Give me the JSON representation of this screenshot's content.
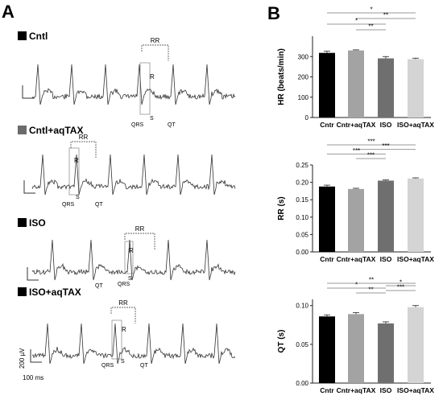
{
  "panels": {
    "A": {
      "label": "A"
    },
    "B": {
      "label": "B"
    }
  },
  "ecg": {
    "traces": [
      {
        "name": "Cntl",
        "swatch": "#000000",
        "annotations": {
          "rr": "RR",
          "r": "R",
          "qrs": "QRS",
          "s": "S",
          "qt": "QT"
        }
      },
      {
        "name": "Cntl+aqTAX",
        "swatch": "#6b6b6b",
        "annotations": {
          "rr": "RR",
          "r": "R",
          "qrs": "QRS",
          "s": "S",
          "qt": "QT"
        }
      },
      {
        "name": "ISO",
        "swatch": "#000000",
        "annotations": {
          "rr": "RR",
          "r": "R",
          "qrs": "QRS",
          "s": "S",
          "qt": "QT"
        }
      },
      {
        "name": "ISO+aqTAX",
        "swatch": "#000000",
        "annotations": {
          "rr": "RR",
          "r": "R",
          "qrs": "QRS",
          "s": "S",
          "qt": "QT"
        }
      }
    ],
    "scale_bar": {
      "voltage": "200 µV",
      "time": "100 ms"
    }
  },
  "chart_data": [
    {
      "type": "bar",
      "ylabel": "HR (beats/min)",
      "categories": [
        "Cntr",
        "Cntr+aqTAX",
        "ISO",
        "ISO+aqTAX"
      ],
      "values": [
        318,
        330,
        291,
        287
      ],
      "errors": [
        8,
        3,
        9,
        5
      ],
      "ylim": [
        0,
        400
      ],
      "yticks": [
        0,
        100,
        200,
        300
      ],
      "ytick_labels": [
        "0",
        "100",
        "200",
        "300"
      ],
      "colors": [
        "#000000",
        "#a3a3a3",
        "#6f6f6f",
        "#d4d4d4"
      ],
      "significance": [
        {
          "from": 0,
          "to": 3,
          "label": "*"
        },
        {
          "from": 1,
          "to": 3,
          "label": "**"
        },
        {
          "from": 0,
          "to": 2,
          "label": "*"
        },
        {
          "from": 1,
          "to": 2,
          "label": "**"
        }
      ]
    },
    {
      "type": "bar",
      "ylabel": "RR (s)",
      "categories": [
        "Cntr",
        "Cntr+aqTAX",
        "ISO",
        "ISO+aqTAX"
      ],
      "values": [
        0.188,
        0.181,
        0.205,
        0.211
      ],
      "errors": [
        0.004,
        0.002,
        0.002,
        0.002
      ],
      "ylim": [
        0,
        0.25
      ],
      "yticks": [
        0,
        0.05,
        0.1,
        0.15,
        0.2,
        0.25
      ],
      "ytick_labels": [
        "0.00",
        "0.05",
        "0.10",
        "0.15",
        "0.20",
        "0.25"
      ],
      "colors": [
        "#000000",
        "#a3a3a3",
        "#6f6f6f",
        "#d4d4d4"
      ],
      "significance": [
        {
          "from": 0,
          "to": 3,
          "label": "***"
        },
        {
          "from": 1,
          "to": 3,
          "label": "***"
        },
        {
          "from": 0,
          "to": 2,
          "label": "***"
        },
        {
          "from": 1,
          "to": 2,
          "label": "***"
        }
      ]
    },
    {
      "type": "bar",
      "ylabel": "QT (s)",
      "categories": [
        "Cntr",
        "Cntr+aqTAX",
        "ISO",
        "ISO+aqTAX"
      ],
      "values": [
        0.086,
        0.089,
        0.077,
        0.098
      ],
      "errors": [
        0.002,
        0.002,
        0.002,
        0.002
      ],
      "ylim": [
        0,
        0.108
      ],
      "yticks": [
        0,
        0.05,
        0.1
      ],
      "ytick_labels": [
        "0.00",
        "0.05",
        "0.10"
      ],
      "colors": [
        "#000000",
        "#a3a3a3",
        "#6f6f6f",
        "#d4d4d4"
      ],
      "significance": [
        {
          "from": 0,
          "to": 3,
          "label": "**"
        },
        {
          "from": 2,
          "to": 3,
          "label": "*"
        },
        {
          "from": 0,
          "to": 2,
          "label": "*"
        },
        {
          "from": 2,
          "to": 3,
          "label": "***"
        },
        {
          "from": 1,
          "to": 2,
          "label": "**"
        }
      ]
    }
  ]
}
